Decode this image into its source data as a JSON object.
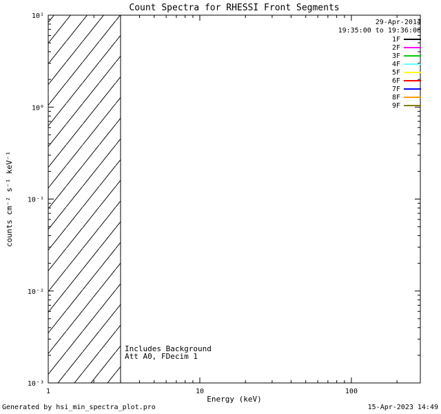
{
  "title": "Count Spectra for RHESSI Front Segments",
  "footer": {
    "left": "Generated by hsi_min_spectra_plot.pro",
    "right": "15-Apr-2023 14:49"
  },
  "chart_data": {
    "type": "line",
    "title": "Count Spectra for RHESSI Front Segments",
    "xlabel": "Energy (keV)",
    "ylabel": "counts cm⁻² s⁻¹ keV⁻¹",
    "xscale": "log",
    "yscale": "log",
    "xlim": [
      1,
      285
    ],
    "ylim": [
      0.001,
      10
    ],
    "x_major_ticks": [
      1,
      10,
      100
    ],
    "x_tick_labels": [
      "1",
      "10",
      "100"
    ],
    "y_major_ticks": [
      0.001,
      0.01,
      0.1,
      1,
      10
    ],
    "y_tick_labels": [
      "10⁻³",
      "10⁻²",
      "10⁻¹",
      "10⁰",
      "10¹"
    ],
    "grid": false,
    "series": [],
    "hatched_region": {
      "x_start": 1,
      "x_end": 3,
      "style": "diagonal-hatch"
    },
    "annotations": [
      "Includes Background",
      "Att A0, FDecim 1"
    ],
    "legend": {
      "position": "top-right",
      "header": [
        "29-Apr-2014",
        "19:35:00 to 19:36:00"
      ],
      "entries": [
        {
          "label": "1F",
          "color": "#000000"
        },
        {
          "label": "2F",
          "color": "#ff00ff"
        },
        {
          "label": "3F",
          "color": "#00cc00"
        },
        {
          "label": "4F",
          "color": "#66ffff"
        },
        {
          "label": "5F",
          "color": "#ffff00"
        },
        {
          "label": "6F",
          "color": "#ff0000"
        },
        {
          "label": "7F",
          "color": "#0000ff"
        },
        {
          "label": "8F",
          "color": "#ff9900"
        },
        {
          "label": "9F",
          "color": "#808000"
        }
      ]
    }
  }
}
